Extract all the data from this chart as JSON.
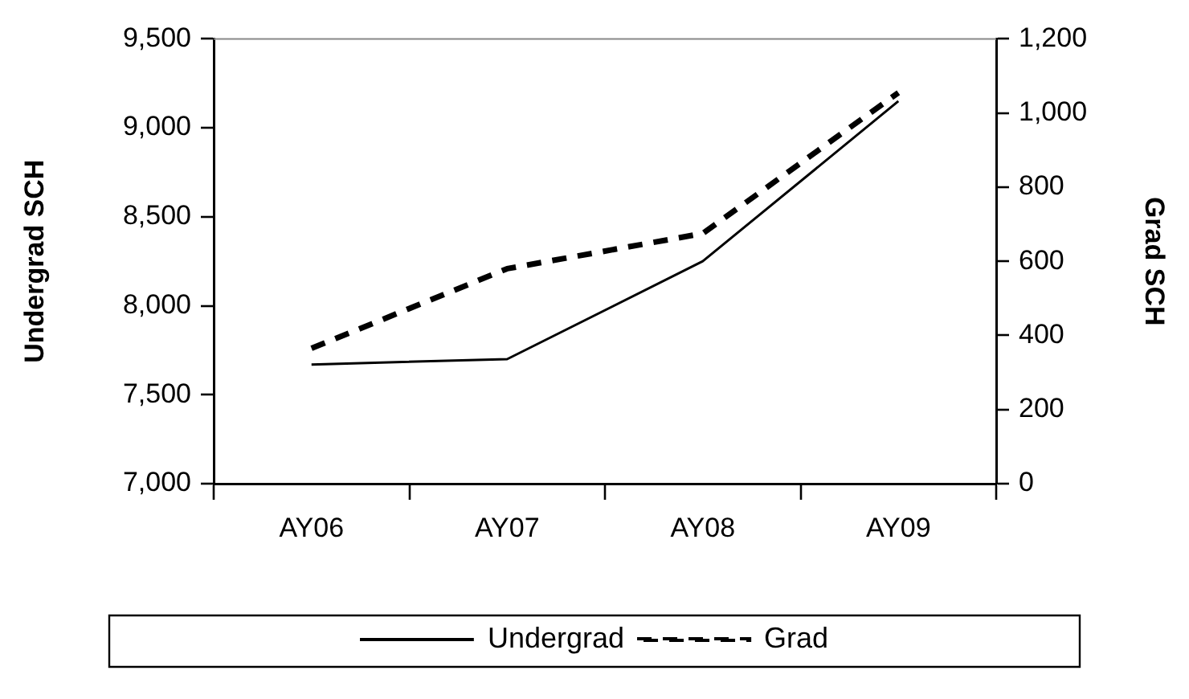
{
  "chart_data": {
    "type": "line",
    "categories": [
      "AY06",
      "AY07",
      "AY08",
      "AY09"
    ],
    "series": [
      {
        "name": "Undergrad",
        "color": "#000000",
        "values": [
          7670,
          7700,
          8250,
          9150
        ],
        "line_style": "solid"
      },
      {
        "name": "Grad",
        "color": "#000000",
        "values": [
          365,
          580,
          675,
          1055
        ],
        "axis": "y2",
        "line_style": "dashed"
      }
    ],
    "ylabel": "Undergrad SCH",
    "y2label": "Grad SCH",
    "ylim": [
      7000,
      9500
    ],
    "yticks": [
      {
        "value": 7000,
        "label": "7,000"
      },
      {
        "value": 7500,
        "label": "7,500"
      },
      {
        "value": 8000,
        "label": "8,000"
      },
      {
        "value": 8500,
        "label": "8,500"
      },
      {
        "value": 9000,
        "label": "9,000"
      },
      {
        "value": 9500,
        "label": "9,500"
      }
    ],
    "y2lim": [
      0,
      1200
    ],
    "y2ticks": [
      0,
      200,
      400,
      600,
      800,
      {
        "value": 1000,
        "label": "1,000"
      },
      {
        "value": 1200,
        "label": "1,200"
      }
    ],
    "grid": false,
    "legend": "bottom",
    "marker": "none"
  }
}
